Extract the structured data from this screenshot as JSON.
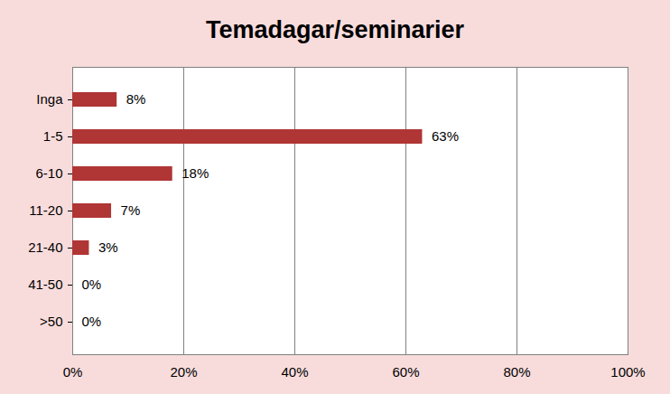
{
  "chart_data": {
    "type": "bar",
    "title": "Temadagar/seminarier",
    "orientation": "horizontal",
    "categories": [
      "Inga",
      "1-5",
      "6-10",
      "11-20",
      "21-40",
      "41-50",
      ">50"
    ],
    "values": [
      8,
      63,
      18,
      7,
      3,
      0,
      0
    ],
    "value_labels": [
      "8%",
      "63%",
      "18%",
      "7%",
      "3%",
      "0%",
      "0%"
    ],
    "color": "#b03535",
    "xlim": [
      0,
      100
    ],
    "xticks": [
      {
        "value": 0,
        "label": "0%"
      },
      {
        "value": 20,
        "label": "20%"
      },
      {
        "value": 40,
        "label": "40%"
      },
      {
        "value": 60,
        "label": "60%"
      },
      {
        "value": 80,
        "label": "80%"
      },
      {
        "value": 100,
        "label": "100%"
      }
    ],
    "grid": true,
    "data_labels": true
  }
}
